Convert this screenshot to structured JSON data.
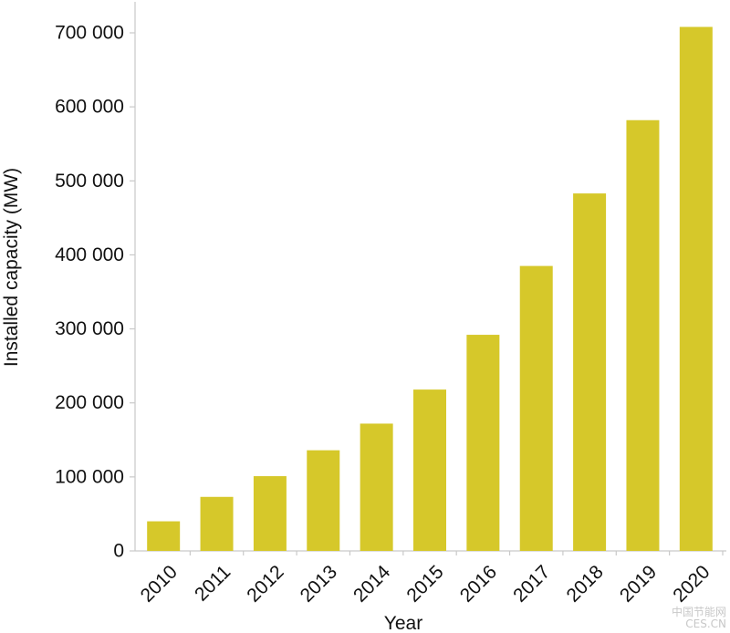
{
  "chart_data": {
    "type": "bar",
    "categories": [
      "2010",
      "2011",
      "2012",
      "2013",
      "2014",
      "2015",
      "2016",
      "2017",
      "2018",
      "2019",
      "2020"
    ],
    "values": [
      40000,
      73000,
      101000,
      136000,
      172000,
      218000,
      292000,
      385000,
      483000,
      582000,
      708000
    ],
    "xlabel": "Year",
    "ylabel": "Installed capacity (MW)",
    "ylim": [
      0,
      700000
    ],
    "yticks": [
      0,
      100000,
      200000,
      300000,
      400000,
      500000,
      600000,
      700000
    ],
    "ytick_labels": [
      "0",
      "100 000",
      "200 000",
      "300 000",
      "400 000",
      "500 000",
      "600 000",
      "700 000"
    ],
    "bar_color": "#d6c82a",
    "grid": false,
    "legend": "none"
  },
  "watermark": {
    "line1": "中国节能网",
    "line2": "CES.CN"
  }
}
